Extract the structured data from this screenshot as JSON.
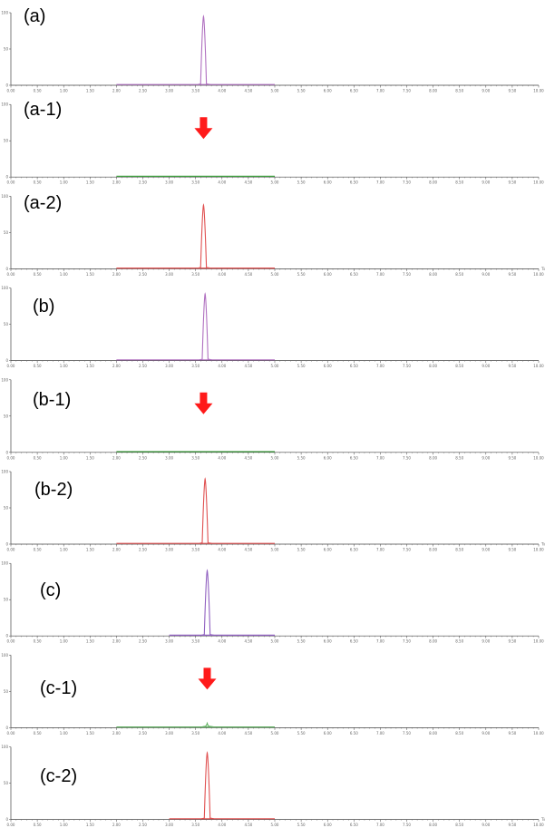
{
  "chart_data": [
    {
      "type": "line",
      "label": "(a)",
      "color": "#b070c0",
      "baseline": [
        2.0,
        5.0
      ],
      "peak": {
        "x": 3.65,
        "height": 95
      },
      "arrow": false,
      "ylim": [
        0,
        100
      ],
      "xlim": [
        0,
        10
      ],
      "ytick_labels": [
        "100",
        "50",
        "0"
      ],
      "xtick_labels": [
        "0.00",
        "0.50",
        "1.00",
        "1.50",
        "2.00",
        "2.50",
        "3.00",
        "3.50",
        "4.00",
        "4.50",
        "5.00",
        "5.50",
        "6.00",
        "6.50",
        "7.00",
        "7.50",
        "8.00",
        "8.50",
        "9.00",
        "9.50",
        "10.00"
      ],
      "unit": ""
    },
    {
      "type": "line",
      "label": "(a-1)",
      "color": "#40a040",
      "baseline": [
        2.0,
        5.0
      ],
      "peak": null,
      "arrow": true,
      "arrow_x": 3.65,
      "ylim": [
        0,
        100
      ],
      "xlim": [
        0,
        10
      ],
      "ytick_labels": [
        "100",
        "50",
        "0"
      ],
      "xtick_labels": [
        "0.00",
        "0.50",
        "1.00",
        "1.50",
        "2.00",
        "2.50",
        "3.00",
        "3.50",
        "4.00",
        "4.50",
        "5.00",
        "5.50",
        "6.00",
        "6.50",
        "7.00",
        "7.50",
        "8.00",
        "8.50",
        "9.00",
        "9.50",
        "10.00"
      ],
      "unit": ""
    },
    {
      "type": "line",
      "label": "(a-2)",
      "color": "#e05050",
      "baseline": [
        2.0,
        5.0
      ],
      "peak": {
        "x": 3.65,
        "height": 88
      },
      "arrow": false,
      "ylim": [
        0,
        100
      ],
      "xlim": [
        0,
        10
      ],
      "ytick_labels": [
        "100",
        "50",
        "0"
      ],
      "xtick_labels": [
        "0.00",
        "0.50",
        "1.00",
        "1.50",
        "2.00",
        "2.50",
        "3.00",
        "3.50",
        "4.00",
        "4.50",
        "5.00",
        "5.50",
        "6.00",
        "6.50",
        "7.00",
        "7.50",
        "8.00",
        "8.50",
        "9.00",
        "9.50",
        "10.00"
      ],
      "unit": "Time"
    },
    {
      "type": "line",
      "label": "(b)",
      "color": "#b070c0",
      "baseline": [
        2.0,
        5.0
      ],
      "peak": {
        "x": 3.68,
        "height": 92
      },
      "arrow": false,
      "ylim": [
        0,
        100
      ],
      "xlim": [
        0,
        10
      ],
      "ytick_labels": [
        "100",
        "50",
        "0"
      ],
      "xtick_labels": [
        "0.00",
        "0.50",
        "1.00",
        "1.50",
        "2.00",
        "2.50",
        "3.00",
        "3.50",
        "4.00",
        "4.50",
        "5.00",
        "5.50",
        "6.00",
        "6.50",
        "7.00",
        "7.50",
        "8.00",
        "8.50",
        "9.00",
        "9.50",
        "10.00"
      ],
      "unit": ""
    },
    {
      "type": "line",
      "label": "(b-1)",
      "color": "#40a040",
      "baseline": [
        2.0,
        5.0
      ],
      "peak": null,
      "arrow": true,
      "arrow_x": 3.65,
      "ylim": [
        0,
        100
      ],
      "xlim": [
        0,
        10
      ],
      "ytick_labels": [
        "100",
        "50",
        "0"
      ],
      "xtick_labels": [
        "0.00",
        "0.50",
        "1.00",
        "1.50",
        "2.00",
        "2.50",
        "3.00",
        "3.50",
        "4.00",
        "4.50",
        "5.00",
        "5.50",
        "6.00",
        "6.50",
        "7.00",
        "7.50",
        "8.00",
        "8.50",
        "9.00",
        "9.50",
        "10.00"
      ],
      "unit": ""
    },
    {
      "type": "line",
      "label": "(b-2)",
      "color": "#e05050",
      "baseline": [
        2.0,
        5.0
      ],
      "peak": {
        "x": 3.68,
        "height": 90
      },
      "arrow": false,
      "ylim": [
        0,
        100
      ],
      "xlim": [
        0,
        10
      ],
      "ytick_labels": [
        "100",
        "50",
        "0"
      ],
      "xtick_labels": [
        "0.00",
        "0.50",
        "1.00",
        "1.50",
        "2.00",
        "2.50",
        "3.00",
        "3.50",
        "4.00",
        "4.50",
        "5.00",
        "5.50",
        "6.00",
        "6.50",
        "7.00",
        "7.50",
        "8.00",
        "8.50",
        "9.00",
        "9.50",
        "10.00"
      ],
      "unit": "Time"
    },
    {
      "type": "line",
      "label": "(c)",
      "color": "#9060c0",
      "baseline": [
        3.0,
        5.0
      ],
      "peak": {
        "x": 3.72,
        "height": 90
      },
      "arrow": false,
      "ylim": [
        0,
        100
      ],
      "xlim": [
        0,
        10
      ],
      "ytick_labels": [
        "100",
        "50",
        "0"
      ],
      "xtick_labels": [
        "0.00",
        "0.50",
        "1.00",
        "1.50",
        "2.00",
        "2.50",
        "3.00",
        "3.50",
        "4.00",
        "4.50",
        "5.00",
        "5.50",
        "6.00",
        "6.50",
        "7.00",
        "7.50",
        "8.00",
        "8.50",
        "9.00",
        "9.50",
        "10.00"
      ],
      "unit": ""
    },
    {
      "type": "line",
      "label": "(c-1)",
      "color": "#60b060",
      "baseline": [
        2.0,
        5.0
      ],
      "peak": {
        "x": 3.72,
        "height": 6
      },
      "arrow": true,
      "arrow_x": 3.72,
      "ylim": [
        0,
        100
      ],
      "xlim": [
        0,
        10
      ],
      "ytick_labels": [
        "100",
        "50",
        "0"
      ],
      "xtick_labels": [
        "0.00",
        "0.50",
        "1.00",
        "1.50",
        "2.00",
        "2.50",
        "3.00",
        "3.50",
        "4.00",
        "4.50",
        "5.00",
        "5.50",
        "6.00",
        "6.50",
        "7.00",
        "7.50",
        "8.00",
        "8.50",
        "9.00",
        "9.50",
        "10.00"
      ],
      "unit": ""
    },
    {
      "type": "line",
      "label": "(c-2)",
      "color": "#e05050",
      "baseline": [
        3.0,
        5.0
      ],
      "peak": {
        "x": 3.72,
        "height": 92
      },
      "arrow": false,
      "ylim": [
        0,
        100
      ],
      "xlim": [
        0,
        10
      ],
      "ytick_labels": [
        "100",
        "50",
        "0"
      ],
      "xtick_labels": [
        "0.00",
        "0.50",
        "1.00",
        "1.50",
        "2.00",
        "2.50",
        "3.00",
        "3.50",
        "4.00",
        "4.50",
        "5.00",
        "5.50",
        "6.00",
        "6.50",
        "7.00",
        "7.50",
        "8.00",
        "8.50",
        "9.00",
        "9.50",
        "10.00"
      ],
      "unit": "Time"
    }
  ],
  "colors": {
    "axis": "#444444",
    "arrow": "#ff1a1a"
  }
}
